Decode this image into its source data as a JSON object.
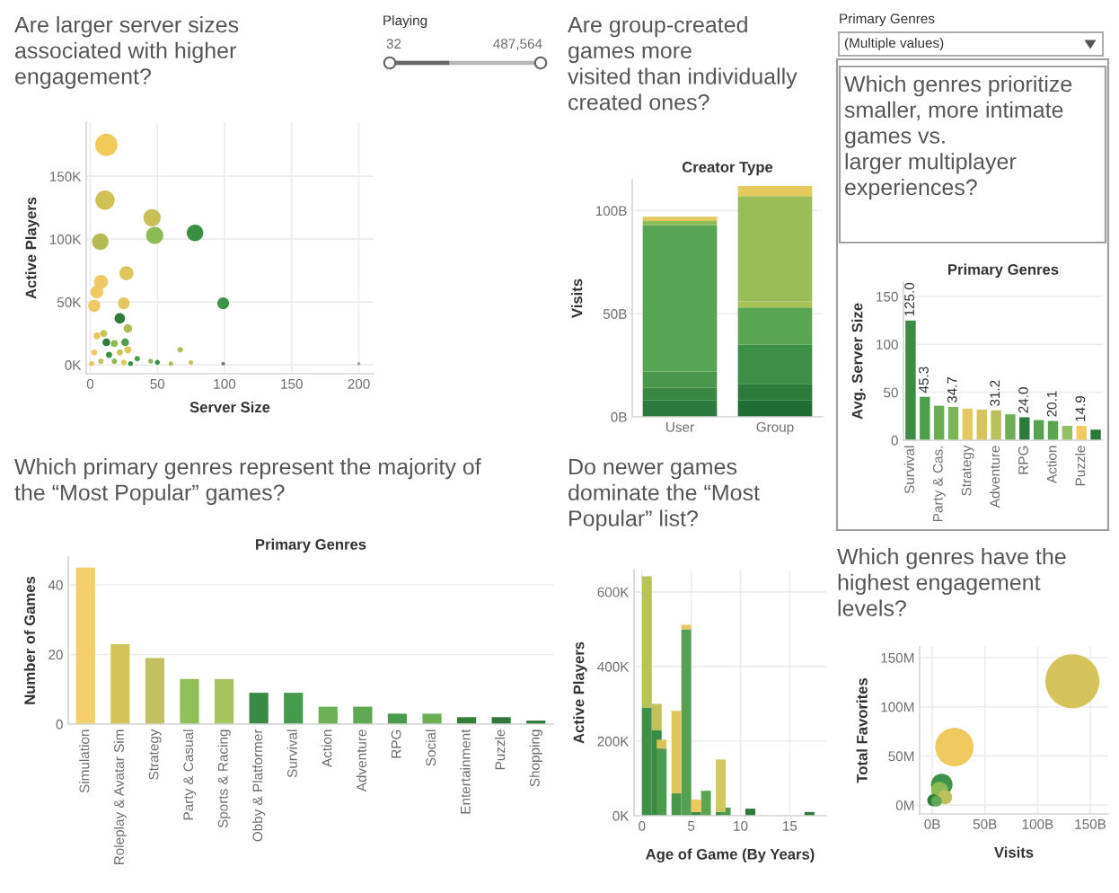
{
  "chart_data": [
    {
      "type": "bubble",
      "title": "Are larger server sizes\nassociated with higher\nengagement?",
      "xlabel": "Server Size",
      "ylabel": "Active Players",
      "marker": "circle",
      "x": [
        12,
        11,
        46,
        48,
        78,
        7.5,
        27,
        8,
        5,
        3,
        25,
        99,
        22,
        28,
        67,
        5,
        10,
        12,
        18,
        26,
        3,
        14,
        22,
        28,
        35,
        8,
        18,
        25,
        45,
        50,
        60,
        75,
        99,
        200,
        1,
        30
      ],
      "values": [
        175000,
        131000,
        117000,
        103000,
        105000,
        98000,
        73000,
        66000,
        58000,
        47000,
        49000,
        49000,
        37000,
        29000,
        12000,
        23000,
        25000,
        18000,
        17000,
        18000,
        10000,
        8000,
        10000,
        12000,
        5000,
        3000,
        3000,
        2000,
        3000,
        2000,
        1000,
        2000,
        1000,
        1000,
        1000,
        1000
      ],
      "sizes": [
        1,
        0.75,
        0.6,
        0.6,
        0.55,
        0.55,
        0.4,
        0.4,
        0.33,
        0.3,
        0.28,
        0.28,
        0.22,
        0.15,
        0.06,
        0.1,
        0.1,
        0.12,
        0.1,
        0.12,
        0.08,
        0.08,
        0.08,
        0.1,
        0.06,
        0.06,
        0.06,
        0.06,
        0.05,
        0.05,
        0.04,
        0.04,
        0.03,
        0.02,
        0.05,
        0.05
      ],
      "colors": [
        "#f2ca5c",
        "#cfc155",
        "#c8c055",
        "#8cbb55",
        "#3a8f45",
        "#b5b954",
        "#dcc55a",
        "#efc965",
        "#efc965",
        "#efc965",
        "#e2c85c",
        "#3d9448",
        "#2f7d3c",
        "#b2bb55",
        "#a9be5e",
        "#e8c860",
        "#c9c058",
        "#2f7d3c",
        "#8cbb55",
        "#4f9c4d",
        "#efc965",
        "#3a8f45",
        "#c9c058",
        "#e2c85c",
        "#4f9c4d",
        "#c9c058",
        "#8cbb55",
        "#e2c85c",
        "#8cbb55",
        "#3a8f45",
        "#b5b954",
        "#c9c058",
        "#6b8a6b",
        "#9aa09a",
        "#e8c860",
        "#3a8f45"
      ],
      "xlim": [
        -3,
        211
      ],
      "ylim": [
        -7000,
        193000
      ],
      "xticks": [
        0,
        50,
        100,
        150,
        200
      ],
      "yticks": [
        {
          "value": 0,
          "label": "0K"
        },
        {
          "value": 50000,
          "label": "50K"
        },
        {
          "value": 100000,
          "label": "100K"
        },
        {
          "value": 150000,
          "label": "150K"
        }
      ],
      "grid": true
    },
    {
      "type": "other",
      "title": "Playing",
      "annotations": [
        "32",
        "487,564"
      ]
    },
    {
      "type": "bar",
      "stacked": true,
      "title": "Are group-created\ngames more\nvisited than individually\ncreated ones?",
      "xlabel": "Creator Type",
      "ylabel": "Visits",
      "categories": [
        "User",
        "Group"
      ],
      "series": [
        {
          "values": [
            8000000000,
            8000000000
          ],
          "colors": [
            "#2e7a3e",
            "#1f6e35"
          ]
        },
        {
          "values": [
            6000000000,
            8000000000
          ],
          "colors": [
            "#3a8744",
            "#2c7a3c"
          ]
        },
        {
          "values": [
            8000000000,
            19000000000
          ],
          "colors": [
            "#4a964c",
            "#3d8f47"
          ]
        },
        {
          "values": [
            71000000000,
            18000000000
          ],
          "colors": [
            "#58a455",
            "#5aa551"
          ]
        },
        {
          "values": [
            2000000000,
            3000000000
          ],
          "colors": [
            "#8dbb56",
            "#a8c25a"
          ]
        },
        {
          "values": [
            2000000000,
            51000000000
          ],
          "colors": [
            "#e2c85d",
            "#98bd57"
          ]
        },
        {
          "values": [
            null,
            5000000000
          ],
          "colors": [
            null,
            "#e5c95d"
          ]
        }
      ],
      "ylim": [
        0,
        115000000000
      ],
      "yticks": [
        {
          "value": 0,
          "label": "0B"
        },
        {
          "value": 50000000000,
          "label": "50B"
        },
        {
          "value": 100000000000,
          "label": "100B"
        }
      ],
      "grid": "y"
    },
    {
      "type": "other",
      "title": "Primary Genres",
      "annotations": [
        "(Multiple values)"
      ]
    },
    {
      "type": "bar",
      "title": "Which genres prioritize\nsmaller, more intimate\ngames vs.\nlarger multiplayer\nexperiences?",
      "xlabel": "Primary Genres",
      "ylabel": "Avg. Server Size",
      "categories": [
        "Survival",
        null,
        "Party & Cas.",
        null,
        "Strategy",
        null,
        "Adventure",
        null,
        "RPG",
        null,
        "Action",
        null,
        "Puzzle",
        null
      ],
      "values": [
        125.0,
        45.3,
        36,
        34.7,
        33,
        32,
        31.2,
        27,
        24.0,
        21,
        20.1,
        15,
        14.9,
        11
      ],
      "value_labels": [
        "125.0",
        "45.3",
        null,
        "34.7",
        null,
        null,
        "31.2",
        null,
        "24.0",
        null,
        "20.1",
        null,
        "14.9",
        null
      ],
      "colors": [
        "#3d8c43",
        "#4f9e4c",
        "#6aad55",
        "#7ab55a",
        "#e5c862",
        "#d5c45d",
        "#b9c05c",
        "#6fae58",
        "#2d7a3a",
        "#56a251",
        "#5aa552",
        "#93c062",
        "#f2c761",
        "#2a7838"
      ],
      "ylim": [
        0,
        165
      ],
      "yticks": [
        0,
        50,
        100,
        150
      ],
      "grid": "y"
    },
    {
      "type": "bar",
      "title": "Which primary genres represent the majority of\nthe “Most Popular” games?",
      "xlabel": "Primary Genres",
      "ylabel": "Number of Games",
      "categories": [
        "Simulation",
        "Roleplay & Avatar Sim",
        "Strategy",
        "Party & Casual",
        "Sports & Racing",
        "Obby & Platformer",
        "Survival",
        "Action",
        "Adventure",
        "RPG",
        "Social",
        "Entertainment",
        "Puzzle",
        "Shopping"
      ],
      "values": [
        45,
        23,
        19,
        13,
        13,
        9,
        9,
        5,
        5,
        3,
        3,
        2,
        2,
        1
      ],
      "colors": [
        "#f2cf6a",
        "#d3c45a",
        "#c2c060",
        "#90bf55",
        "#a7c35f",
        "#3a8a45",
        "#469a4d",
        "#6cb055",
        "#5fa752",
        "#4a9b4e",
        "#6cb055",
        "#357f3d",
        "#2f7a3a",
        "#2b7a3a"
      ],
      "ylim": [
        0,
        48
      ],
      "yticks": [
        0,
        20,
        40
      ],
      "grid": "y"
    },
    {
      "type": "bar",
      "stacked": true,
      "title": "Do newer games\ndominate the “Most\nPopular” list?",
      "xlabel": "Age of Game (By Years)",
      "ylabel": "Active Players",
      "x": [
        0.5,
        1.5,
        2,
        3.5,
        4.5,
        5.5,
        6.5,
        8,
        8.5,
        11,
        17
      ],
      "series": [
        {
          "values": [
            290000,
            230000,
            180000,
            60000,
            500000,
            10000,
            67000,
            10000,
            22000,
            19000,
            10000
          ],
          "colors": [
            "#3f8f46",
            "#3a8a44",
            "#4c9a4d",
            "#4a964a",
            "#55a052",
            "#3d8d45",
            "#5aa552",
            "#3d8d45",
            "#4c9a4d",
            "#2d7a3a",
            "#2d7a3a"
          ]
        },
        {
          "values": [
            352000,
            70000,
            24000,
            221000,
            12000,
            33000,
            null,
            141000,
            null,
            null,
            null
          ],
          "colors": [
            "#b6c25a",
            "#c2c05a",
            "#d8c45a",
            "#e0c55e",
            "#e8c860",
            "#f0c55a",
            null,
            "#d3c65f",
            null,
            null,
            null
          ]
        }
      ],
      "xlim": [
        -0.8,
        18.7
      ],
      "ylim": [
        0,
        660000
      ],
      "xticks": [
        0,
        5,
        10,
        15
      ],
      "yticks": [
        {
          "value": 0,
          "label": "0K"
        },
        {
          "value": 200000,
          "label": "200K"
        },
        {
          "value": 400000,
          "label": "400K"
        },
        {
          "value": 600000,
          "label": "600K"
        }
      ],
      "grid": true
    },
    {
      "type": "bubble",
      "title": "Which genres have the\nhighest engagement\nlevels?",
      "xlabel": "Visits",
      "ylabel": "Total Favorites",
      "marker": "circle",
      "x": [
        133000000000,
        21000000000,
        9000000000,
        7000000000,
        12000000000,
        1000000000,
        4000000000
      ],
      "values": [
        126000000,
        59000000,
        21000000,
        15000000,
        8000000,
        5000000,
        4000000
      ],
      "sizes": [
        1,
        0.5,
        0.16,
        0.1,
        0.07,
        0.05,
        0.04
      ],
      "colors": [
        "#d3c35a",
        "#f0c860",
        "#3d9448",
        "#8cbb55",
        "#bcc05a",
        "#2f7d3c",
        "#5fa752"
      ],
      "xlim": [
        -12000000000,
        167000000000
      ],
      "ylim": [
        -9000000,
        161000000
      ],
      "xticks": [
        {
          "value": 0,
          "label": "0B"
        },
        {
          "value": 50000000000,
          "label": "50B"
        },
        {
          "value": 100000000000,
          "label": "100B"
        },
        {
          "value": 150000000000,
          "label": "150B"
        }
      ],
      "yticks": [
        {
          "value": 0,
          "label": "0M"
        },
        {
          "value": 50000000,
          "label": "50M"
        },
        {
          "value": 100000000,
          "label": "100M"
        },
        {
          "value": 150000000,
          "label": "150M"
        }
      ],
      "grid": true
    }
  ]
}
